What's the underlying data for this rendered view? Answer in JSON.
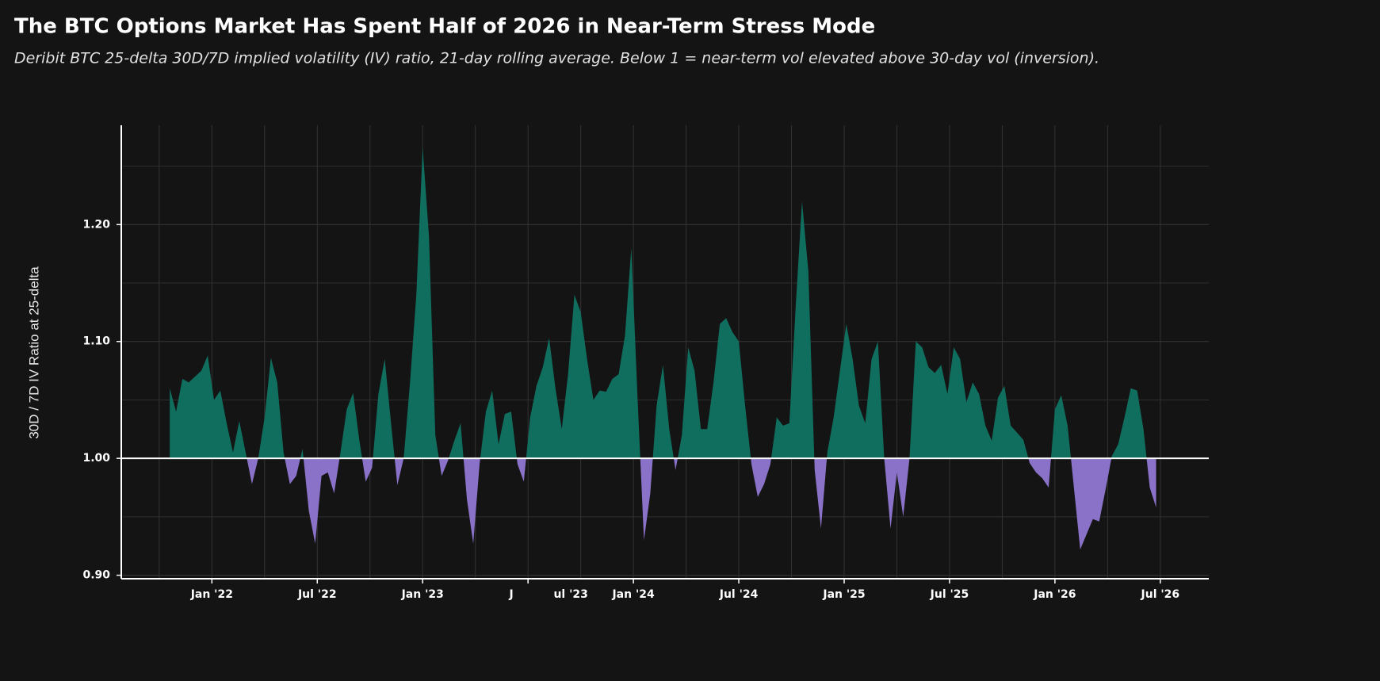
{
  "chart_data": {
    "type": "area",
    "title": "The BTC Options Market Has Spent Half of 2026 in Near-Term Stress Mode",
    "subtitle": "Deribit BTC 25-delta 30D/7D implied volatility (IV) ratio, 21-day rolling average. Below 1 = near-term vol elevated above 30-day vol (inversion).",
    "ylabel": "30D / 7D IV Ratio at 25-delta",
    "baseline": 1,
    "color_above": "#0f6e5e",
    "color_below": "#8a72c8",
    "grid": true,
    "ylim": [
      0.897,
      1.285
    ],
    "yticks": [
      {
        "value": 0.9,
        "label": "0.90"
      },
      {
        "value": 1.0,
        "label": "1.00"
      },
      {
        "value": 1.1,
        "label": "1.10"
      },
      {
        "value": 1.2,
        "label": "1.20"
      }
    ],
    "yminor": [
      0.95,
      1.05,
      1.15,
      1.25
    ],
    "xlim": [
      2021.57,
      2026.73
    ],
    "xticks": [
      {
        "value": 2022.0,
        "label": "Jan '22"
      },
      {
        "value": 2022.5,
        "label": "Jul '22"
      },
      {
        "value": 2023.0,
        "label": "Jan '23"
      },
      {
        "value": 2023.5,
        "label": "J"
      },
      {
        "value": 2024.0,
        "label": "Jan '24"
      },
      {
        "value": 2024.5,
        "label": "Jul '24"
      },
      {
        "value": 2025.0,
        "label": "Jan '25"
      },
      {
        "value": 2025.5,
        "label": "Jul '25"
      },
      {
        "value": 2026.0,
        "label": "Jan '26"
      },
      {
        "value": 2026.5,
        "label": "Jul '26"
      }
    ],
    "xminor": [
      2021.75,
      2022.25,
      2022.75,
      2023.25,
      2023.75,
      2024.25,
      2024.75,
      2025.25,
      2025.75,
      2026.25
    ],
    "annotations": [
      {
        "text": "ul '23",
        "x": 2023.5
      }
    ],
    "x": [
      2021.8,
      2021.83,
      2021.86,
      2021.89,
      2021.92,
      2021.95,
      2021.98,
      2022.01,
      2022.04,
      2022.07,
      2022.1,
      2022.13,
      2022.16,
      2022.19,
      2022.22,
      2022.25,
      2022.28,
      2022.31,
      2022.34,
      2022.37,
      2022.4,
      2022.43,
      2022.46,
      2022.49,
      2022.52,
      2022.55,
      2022.58,
      2022.61,
      2022.64,
      2022.67,
      2022.7,
      2022.73,
      2022.76,
      2022.79,
      2022.82,
      2022.85,
      2022.88,
      2022.91,
      2022.94,
      2022.97,
      2023.0,
      2023.03,
      2023.06,
      2023.09,
      2023.12,
      2023.15,
      2023.18,
      2023.21,
      2023.24,
      2023.27,
      2023.3,
      2023.33,
      2023.36,
      2023.39,
      2023.42,
      2023.45,
      2023.48,
      2023.51,
      2023.54,
      2023.57,
      2023.6,
      2023.63,
      2023.66,
      2023.69,
      2023.72,
      2023.75,
      2023.78,
      2023.81,
      2023.84,
      2023.87,
      2023.9,
      2023.93,
      2023.96,
      2023.99,
      2024.02,
      2024.05,
      2024.08,
      2024.11,
      2024.14,
      2024.17,
      2024.2,
      2024.23,
      2024.26,
      2024.29,
      2024.32,
      2024.35,
      2024.38,
      2024.41,
      2024.44,
      2024.47,
      2024.5,
      2024.53,
      2024.56,
      2024.59,
      2024.62,
      2024.65,
      2024.68,
      2024.71,
      2024.74,
      2024.77,
      2024.8,
      2024.83,
      2024.86,
      2024.89,
      2024.92,
      2024.95,
      2024.98,
      2025.01,
      2025.04,
      2025.07,
      2025.1,
      2025.13,
      2025.16,
      2025.19,
      2025.22,
      2025.25,
      2025.28,
      2025.31,
      2025.34,
      2025.37,
      2025.4,
      2025.43,
      2025.46,
      2025.49,
      2025.52,
      2025.55,
      2025.58,
      2025.61,
      2025.64,
      2025.67,
      2025.7,
      2025.73,
      2025.76,
      2025.79,
      2025.82,
      2025.85,
      2025.88,
      2025.91,
      2025.94,
      2025.97,
      2026.0,
      2026.03,
      2026.06,
      2026.09,
      2026.12,
      2026.15,
      2026.18,
      2026.21,
      2026.24,
      2026.27,
      2026.3,
      2026.33,
      2026.36,
      2026.39,
      2026.42,
      2026.45,
      2026.48
    ],
    "values": [
      1.06,
      1.04,
      1.068,
      1.065,
      1.07,
      1.075,
      1.088,
      1.05,
      1.058,
      1.03,
      1.005,
      1.032,
      1.005,
      0.978,
      1.0,
      1.035,
      1.086,
      1.065,
      1.005,
      0.978,
      0.985,
      1.008,
      0.955,
      0.927,
      0.985,
      0.988,
      0.97,
      1.005,
      1.042,
      1.056,
      1.015,
      0.98,
      0.992,
      1.055,
      1.085,
      1.03,
      0.977,
      1.0,
      1.065,
      1.14,
      1.266,
      1.19,
      1.02,
      0.985,
      0.998,
      1.015,
      1.03,
      0.965,
      0.927,
      0.995,
      1.04,
      1.058,
      1.012,
      1.038,
      1.04,
      0.995,
      0.98,
      1.035,
      1.062,
      1.078,
      1.103,
      1.06,
      1.025,
      1.072,
      1.14,
      1.125,
      1.085,
      1.05,
      1.058,
      1.057,
      1.068,
      1.072,
      1.105,
      1.18,
      1.05,
      0.93,
      0.97,
      1.045,
      1.08,
      1.025,
      0.99,
      1.02,
      1.095,
      1.075,
      1.025,
      1.025,
      1.065,
      1.115,
      1.12,
      1.108,
      1.1,
      1.045,
      0.995,
      0.967,
      0.978,
      0.995,
      1.035,
      1.028,
      1.03,
      1.13,
      1.22,
      1.16,
      0.99,
      0.94,
      1.005,
      1.035,
      1.075,
      1.115,
      1.085,
      1.045,
      1.03,
      1.085,
      1.1,
      1.0,
      0.94,
      0.988,
      0.95,
      1.0,
      1.1,
      1.095,
      1.078,
      1.073,
      1.08,
      1.055,
      1.095,
      1.085,
      1.048,
      1.065,
      1.055,
      1.028,
      1.015,
      1.052,
      1.062,
      1.028,
      1.022,
      1.016,
      0.996,
      0.988,
      0.983,
      0.975,
      1.042,
      1.054,
      1.028,
      0.975,
      0.922,
      0.935,
      0.948,
      0.946,
      0.973,
      1.002,
      1.012,
      1.035,
      1.06,
      1.058,
      1.025,
      0.975,
      0.958
    ]
  }
}
